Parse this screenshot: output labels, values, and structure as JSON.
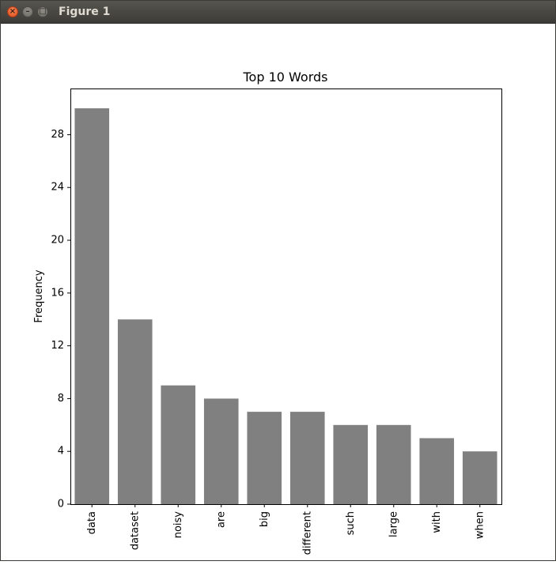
{
  "window": {
    "title": "Figure 1",
    "close_glyph": "×",
    "minimize_glyph": "–",
    "maximize_glyph": "□"
  },
  "chart_data": {
    "type": "bar",
    "title": "Top 10 Words",
    "xlabel": "",
    "ylabel": "Frequency",
    "categories": [
      "data",
      "dataset",
      "noisy",
      "are",
      "big",
      "different",
      "such",
      "large",
      "with",
      "when"
    ],
    "values": [
      30,
      14,
      9,
      8,
      7,
      7,
      6,
      6,
      5,
      4
    ],
    "ylim": [
      0,
      31.5
    ],
    "yticks": [
      0,
      4,
      8,
      12,
      16,
      20,
      24,
      28
    ],
    "bar_color": "#808080",
    "grid": false
  }
}
